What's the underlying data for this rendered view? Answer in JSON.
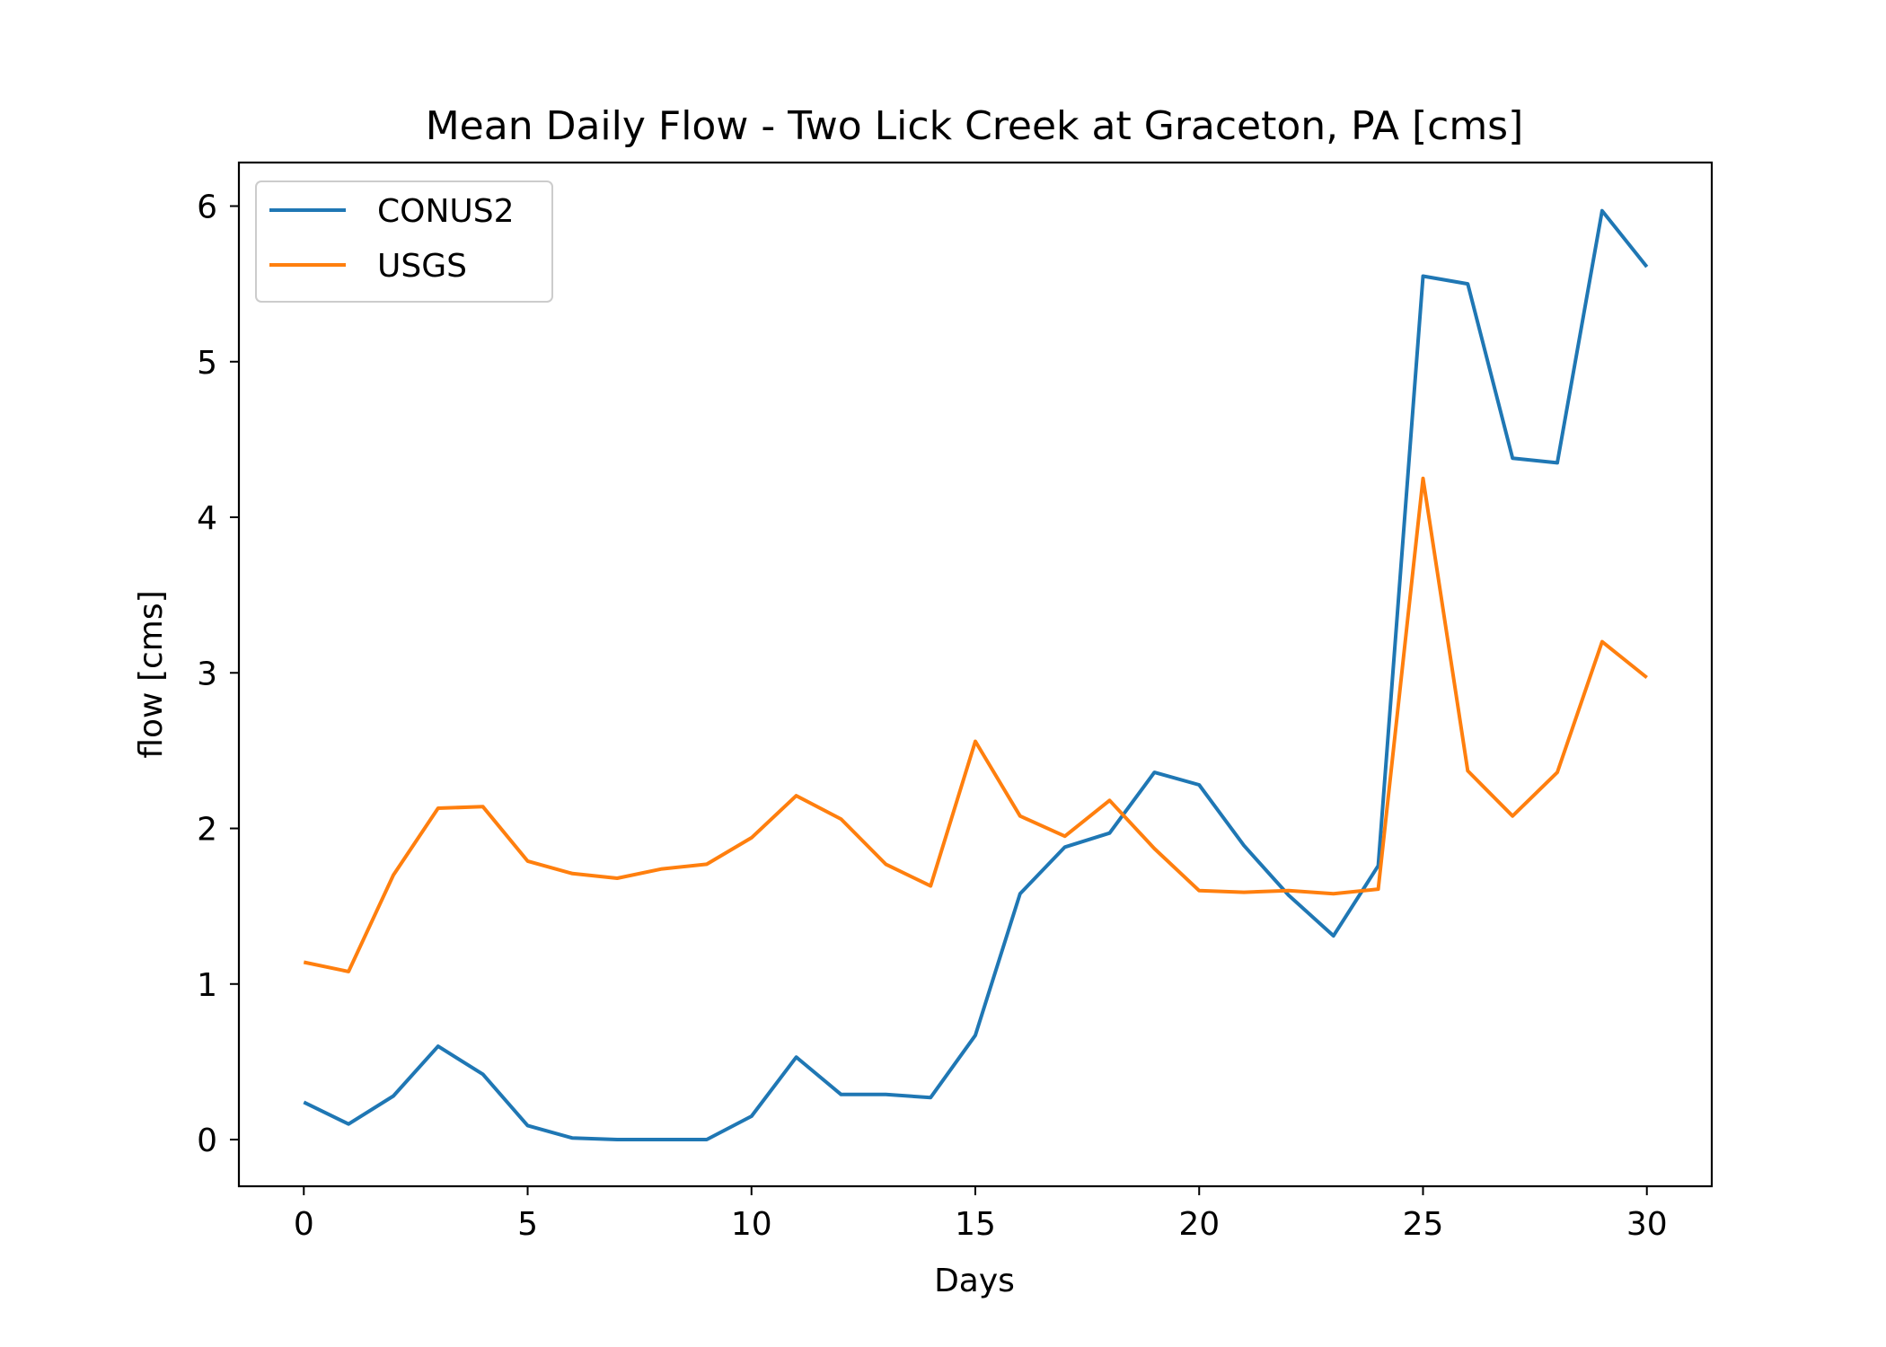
{
  "chart_data": {
    "type": "line",
    "title": "Mean Daily Flow - Two Lick Creek at Graceton, PA [cms]",
    "xlabel": "Days",
    "ylabel": "flow [cms]",
    "xlim": [
      -1.45,
      31.45
    ],
    "ylim": [
      -0.3,
      6.28
    ],
    "xticks": [
      0,
      5,
      10,
      15,
      20,
      25,
      30
    ],
    "yticks": [
      0,
      1,
      2,
      3,
      4,
      5,
      6
    ],
    "grid": false,
    "legend": "top-left",
    "x": [
      0,
      1,
      2,
      3,
      4,
      5,
      6,
      7,
      8,
      9,
      10,
      11,
      12,
      13,
      14,
      15,
      16,
      17,
      18,
      19,
      20,
      21,
      22,
      23,
      24,
      25,
      26,
      27,
      28,
      29,
      30
    ],
    "series": [
      {
        "name": "CONUS2",
        "color": "#1f77b4",
        "values": [
          0.24,
          0.1,
          0.28,
          0.6,
          0.42,
          0.09,
          0.01,
          0.0,
          0.0,
          0.0,
          0.15,
          0.53,
          0.29,
          0.29,
          0.27,
          0.67,
          1.58,
          1.88,
          1.97,
          2.36,
          2.28,
          1.89,
          1.57,
          1.31,
          1.76,
          5.55,
          5.5,
          4.38,
          4.35,
          5.97,
          5.61
        ]
      },
      {
        "name": "USGS",
        "color": "#ff7f0e",
        "values": [
          1.14,
          1.08,
          1.7,
          2.13,
          2.14,
          1.79,
          1.71,
          1.68,
          1.74,
          1.77,
          1.94,
          2.21,
          2.06,
          1.77,
          1.63,
          2.56,
          2.08,
          1.95,
          2.18,
          1.87,
          1.6,
          1.59,
          1.6,
          1.58,
          1.61,
          4.25,
          2.37,
          2.08,
          2.36,
          3.2,
          2.97
        ]
      }
    ]
  }
}
